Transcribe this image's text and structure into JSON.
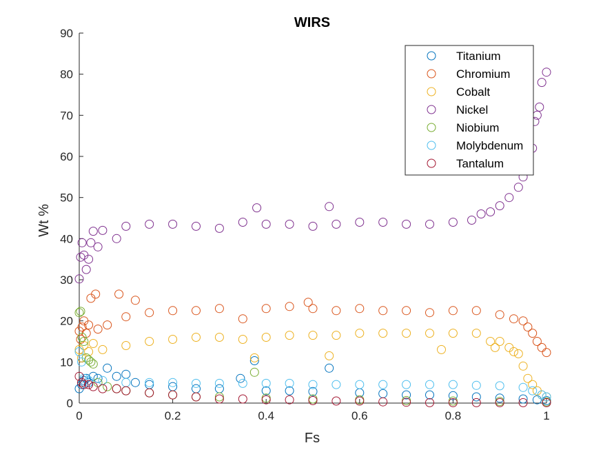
{
  "chart_data": {
    "type": "scatter",
    "title": "WIRS",
    "xlabel": "Fs",
    "ylabel": "Wt %",
    "xlim": [
      0,
      1
    ],
    "ylim": [
      0,
      90
    ],
    "x_ticks": [
      "0",
      "0.2",
      "0.4",
      "0.6",
      "0.8",
      "1"
    ],
    "y_ticks": [
      "0",
      "10",
      "20",
      "30",
      "40",
      "50",
      "60",
      "70",
      "80",
      "90"
    ],
    "grid": false,
    "legend_position": "top-right",
    "marker": "open-circle",
    "series": [
      {
        "name": "Titanium",
        "color": "#0072BD",
        "points": [
          [
            0.0,
            3.5
          ],
          [
            0.005,
            4.5
          ],
          [
            0.01,
            5.5
          ],
          [
            0.015,
            6.0
          ],
          [
            0.02,
            5.0
          ],
          [
            0.03,
            6.5
          ],
          [
            0.04,
            6.0
          ],
          [
            0.06,
            8.5
          ],
          [
            0.08,
            6.5
          ],
          [
            0.1,
            7.0
          ],
          [
            0.12,
            5.0
          ],
          [
            0.15,
            4.5
          ],
          [
            0.2,
            4.0
          ],
          [
            0.25,
            3.5
          ],
          [
            0.3,
            3.5
          ],
          [
            0.345,
            6.0
          ],
          [
            0.375,
            10.3
          ],
          [
            0.4,
            3.0
          ],
          [
            0.45,
            3.0
          ],
          [
            0.5,
            2.8
          ],
          [
            0.535,
            8.5
          ],
          [
            0.6,
            2.5
          ],
          [
            0.65,
            2.3
          ],
          [
            0.7,
            2.0
          ],
          [
            0.75,
            2.0
          ],
          [
            0.8,
            1.8
          ],
          [
            0.85,
            1.5
          ],
          [
            0.9,
            1.2
          ],
          [
            0.95,
            1.0
          ],
          [
            0.98,
            0.8
          ],
          [
            1.0,
            0.6
          ]
        ]
      },
      {
        "name": "Chromium",
        "color": "#D95319",
        "points": [
          [
            0.0,
            17.5
          ],
          [
            0.003,
            15.5
          ],
          [
            0.006,
            18.5
          ],
          [
            0.01,
            20.0
          ],
          [
            0.015,
            17.0
          ],
          [
            0.02,
            19.0
          ],
          [
            0.025,
            25.5
          ],
          [
            0.035,
            26.5
          ],
          [
            0.04,
            18.0
          ],
          [
            0.06,
            19.0
          ],
          [
            0.085,
            26.5
          ],
          [
            0.1,
            21.0
          ],
          [
            0.12,
            25.0
          ],
          [
            0.15,
            22.0
          ],
          [
            0.2,
            22.5
          ],
          [
            0.25,
            22.5
          ],
          [
            0.3,
            23.0
          ],
          [
            0.35,
            20.5
          ],
          [
            0.4,
            23.0
          ],
          [
            0.45,
            23.5
          ],
          [
            0.49,
            24.5
          ],
          [
            0.5,
            23.0
          ],
          [
            0.55,
            22.5
          ],
          [
            0.6,
            23.0
          ],
          [
            0.65,
            22.5
          ],
          [
            0.7,
            22.5
          ],
          [
            0.75,
            22.0
          ],
          [
            0.8,
            22.5
          ],
          [
            0.85,
            22.5
          ],
          [
            0.9,
            21.5
          ],
          [
            0.93,
            20.5
          ],
          [
            0.95,
            20.0
          ],
          [
            0.96,
            18.5
          ],
          [
            0.97,
            17.0
          ],
          [
            0.98,
            15.0
          ],
          [
            0.99,
            13.5
          ],
          [
            1.0,
            12.3
          ]
        ]
      },
      {
        "name": "Cobalt",
        "color": "#EDB120",
        "points": [
          [
            0.0,
            13.0
          ],
          [
            0.005,
            11.0
          ],
          [
            0.01,
            14.0
          ],
          [
            0.02,
            12.5
          ],
          [
            0.03,
            14.5
          ],
          [
            0.05,
            13.0
          ],
          [
            0.1,
            14.0
          ],
          [
            0.15,
            15.0
          ],
          [
            0.2,
            15.5
          ],
          [
            0.25,
            16.0
          ],
          [
            0.3,
            16.0
          ],
          [
            0.35,
            15.5
          ],
          [
            0.375,
            11.0
          ],
          [
            0.4,
            16.0
          ],
          [
            0.45,
            16.5
          ],
          [
            0.5,
            16.5
          ],
          [
            0.535,
            11.5
          ],
          [
            0.55,
            16.5
          ],
          [
            0.6,
            17.0
          ],
          [
            0.65,
            17.0
          ],
          [
            0.7,
            17.0
          ],
          [
            0.75,
            17.0
          ],
          [
            0.775,
            13.0
          ],
          [
            0.8,
            17.0
          ],
          [
            0.85,
            17.0
          ],
          [
            0.88,
            15.0
          ],
          [
            0.89,
            13.5
          ],
          [
            0.9,
            15.0
          ],
          [
            0.92,
            13.5
          ],
          [
            0.93,
            12.5
          ],
          [
            0.94,
            12.0
          ],
          [
            0.95,
            9.0
          ],
          [
            0.96,
            6.0
          ],
          [
            0.97,
            4.5
          ],
          [
            0.98,
            3.0
          ],
          [
            0.99,
            2.0
          ],
          [
            1.0,
            1.5
          ]
        ]
      },
      {
        "name": "Nickel",
        "color": "#7E2F8E",
        "points": [
          [
            0.0,
            30.2
          ],
          [
            0.003,
            35.5
          ],
          [
            0.006,
            39.0
          ],
          [
            0.01,
            36.0
          ],
          [
            0.015,
            32.5
          ],
          [
            0.02,
            35.0
          ],
          [
            0.025,
            39.0
          ],
          [
            0.03,
            41.8
          ],
          [
            0.04,
            38.0
          ],
          [
            0.05,
            42.0
          ],
          [
            0.08,
            40.0
          ],
          [
            0.1,
            43.0
          ],
          [
            0.15,
            43.5
          ],
          [
            0.2,
            43.5
          ],
          [
            0.25,
            43.0
          ],
          [
            0.3,
            42.5
          ],
          [
            0.35,
            44.0
          ],
          [
            0.38,
            47.5
          ],
          [
            0.4,
            43.5
          ],
          [
            0.45,
            43.5
          ],
          [
            0.5,
            43.0
          ],
          [
            0.535,
            47.8
          ],
          [
            0.55,
            43.5
          ],
          [
            0.6,
            44.0
          ],
          [
            0.65,
            44.0
          ],
          [
            0.7,
            43.5
          ],
          [
            0.75,
            43.5
          ],
          [
            0.8,
            44.0
          ],
          [
            0.84,
            44.5
          ],
          [
            0.86,
            46.0
          ],
          [
            0.88,
            46.5
          ],
          [
            0.9,
            48.0
          ],
          [
            0.92,
            50.0
          ],
          [
            0.94,
            52.5
          ],
          [
            0.95,
            55.0
          ],
          [
            0.96,
            58.0
          ],
          [
            0.97,
            62.0
          ],
          [
            0.975,
            68.5
          ],
          [
            0.98,
            70.0
          ],
          [
            0.985,
            72.0
          ],
          [
            0.99,
            78.0
          ],
          [
            1.0,
            80.5
          ]
        ]
      },
      {
        "name": "Niobium",
        "color": "#77AC30",
        "points": [
          [
            0.0,
            22.0
          ],
          [
            0.003,
            22.3
          ],
          [
            0.006,
            16.0
          ],
          [
            0.01,
            15.0
          ],
          [
            0.015,
            11.0
          ],
          [
            0.02,
            10.5
          ],
          [
            0.025,
            10.0
          ],
          [
            0.03,
            9.5
          ],
          [
            0.04,
            5.0
          ],
          [
            0.06,
            4.0
          ],
          [
            0.08,
            3.5
          ],
          [
            0.1,
            3.0
          ],
          [
            0.15,
            2.5
          ],
          [
            0.2,
            2.0
          ],
          [
            0.25,
            1.5
          ],
          [
            0.3,
            1.5
          ],
          [
            0.375,
            7.5
          ],
          [
            0.4,
            1.2
          ],
          [
            0.5,
            1.0
          ],
          [
            0.6,
            0.8
          ],
          [
            0.7,
            0.6
          ],
          [
            0.8,
            0.5
          ],
          [
            0.9,
            0.4
          ],
          [
            1.0,
            0.3
          ]
        ]
      },
      {
        "name": "Molybdenum",
        "color": "#4DBEEE",
        "points": [
          [
            0.0,
            12.5
          ],
          [
            0.005,
            10.0
          ],
          [
            0.01,
            6.0
          ],
          [
            0.02,
            5.5
          ],
          [
            0.05,
            5.5
          ],
          [
            0.1,
            5.0
          ],
          [
            0.15,
            5.0
          ],
          [
            0.2,
            5.0
          ],
          [
            0.25,
            4.8
          ],
          [
            0.3,
            4.8
          ],
          [
            0.35,
            4.8
          ],
          [
            0.4,
            4.8
          ],
          [
            0.45,
            4.8
          ],
          [
            0.5,
            4.5
          ],
          [
            0.55,
            4.5
          ],
          [
            0.6,
            4.5
          ],
          [
            0.65,
            4.5
          ],
          [
            0.7,
            4.5
          ],
          [
            0.75,
            4.5
          ],
          [
            0.8,
            4.5
          ],
          [
            0.85,
            4.3
          ],
          [
            0.9,
            4.2
          ],
          [
            0.95,
            3.8
          ],
          [
            0.97,
            3.0
          ],
          [
            0.99,
            2.0
          ],
          [
            1.0,
            1.5
          ]
        ]
      },
      {
        "name": "Tantalum",
        "color": "#A2142F",
        "points": [
          [
            0.0,
            6.5
          ],
          [
            0.005,
            5.0
          ],
          [
            0.01,
            4.5
          ],
          [
            0.02,
            4.5
          ],
          [
            0.03,
            4.0
          ],
          [
            0.05,
            3.5
          ],
          [
            0.08,
            3.5
          ],
          [
            0.1,
            3.0
          ],
          [
            0.15,
            2.5
          ],
          [
            0.2,
            2.0
          ],
          [
            0.25,
            1.5
          ],
          [
            0.3,
            1.0
          ],
          [
            0.35,
            1.0
          ],
          [
            0.4,
            0.8
          ],
          [
            0.45,
            0.8
          ],
          [
            0.5,
            0.6
          ],
          [
            0.55,
            0.5
          ],
          [
            0.6,
            0.5
          ],
          [
            0.65,
            0.3
          ],
          [
            0.7,
            0.2
          ],
          [
            0.75,
            0.1
          ],
          [
            0.8,
            0.1
          ],
          [
            0.85,
            0.1
          ],
          [
            0.9,
            0.1
          ],
          [
            0.95,
            0.1
          ],
          [
            1.0,
            0.1
          ]
        ]
      }
    ]
  }
}
